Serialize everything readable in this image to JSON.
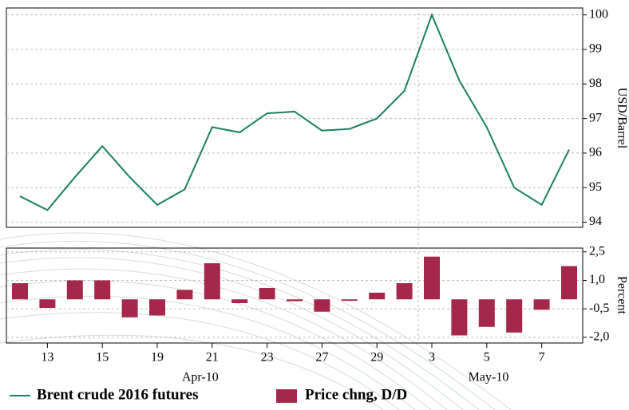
{
  "chart_data": [
    {
      "type": "line",
      "y_label": "USD/Barrel",
      "series": [
        {
          "name": "Brent crude 2016 futures",
          "color": "#1a7f64",
          "values": [
            94.75,
            94.35,
            95.3,
            96.2,
            95.3,
            94.5,
            94.95,
            96.75,
            96.6,
            97.15,
            97.2,
            96.65,
            96.7,
            97.0,
            97.8,
            100.0,
            98.1,
            96.75,
            95.0,
            94.5,
            96.1
          ]
        }
      ],
      "ylim": [
        93.85,
        100.2
      ],
      "yticks": [
        94,
        95,
        96,
        97,
        98,
        99,
        100
      ],
      "grid": true
    },
    {
      "type": "bar",
      "y_label": "Percent",
      "categories": [
        null,
        "13",
        null,
        "15",
        null,
        "19",
        null,
        "21",
        null,
        "23",
        null,
        "27",
        null,
        "29",
        null,
        "3",
        null,
        "5",
        null,
        "7",
        null
      ],
      "months": [
        {
          "label": "Apr-10",
          "from": 0,
          "to": 14
        },
        {
          "label": "May-10",
          "from": 15,
          "to": 20
        }
      ],
      "series": [
        {
          "name": "Price chng, D/D",
          "color": "#a5284a",
          "values": [
            0.85,
            -0.45,
            1.0,
            1.0,
            -0.95,
            -0.85,
            0.5,
            1.9,
            -0.2,
            0.6,
            -0.1,
            -0.65,
            -0.08,
            0.35,
            0.85,
            2.25,
            -1.9,
            -1.45,
            -1.75,
            -0.55,
            1.75
          ]
        }
      ],
      "ylim": [
        -2.3,
        2.7
      ],
      "yticks": [
        {
          "value": -2.0,
          "label": "-2,0"
        },
        {
          "value": -0.5,
          "label": "-0,5"
        },
        {
          "value": 1.0,
          "label": "1,0"
        },
        {
          "value": 2.5,
          "label": "2,5"
        }
      ],
      "grid": true
    }
  ]
}
